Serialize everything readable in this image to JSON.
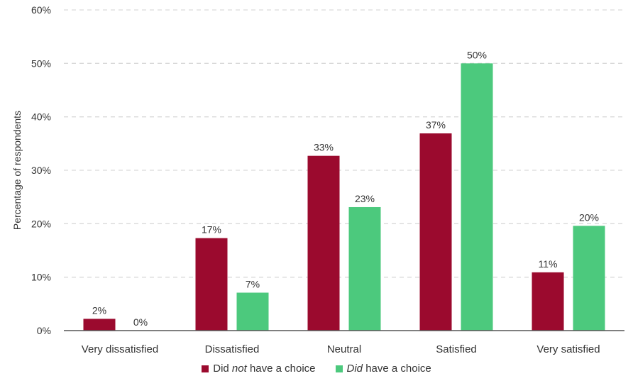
{
  "chart_data": {
    "type": "bar",
    "title": "",
    "xlabel": "",
    "ylabel": "Percentage of respondents",
    "ylim": [
      0,
      60
    ],
    "yticks": [
      "0%",
      "10%",
      "20%",
      "30%",
      "40%",
      "50%",
      "60%"
    ],
    "ytick_values": [
      0,
      10,
      20,
      30,
      40,
      50,
      60
    ],
    "grid": true,
    "grid_style": "dashed",
    "legend_position": "bottom",
    "categories": [
      "Very dissatisfied",
      "Dissatisfied",
      "Neutral",
      "Satisfied",
      "Very satisfied"
    ],
    "series": [
      {
        "name": "Did not have a choice",
        "legend_parts": [
          {
            "text": "Did ",
            "italic": false
          },
          {
            "text": "not",
            "italic": true
          },
          {
            "text": " have a choice",
            "italic": false
          }
        ],
        "color": "#9b0a2e",
        "values": [
          2.2,
          17.3,
          32.7,
          36.9,
          10.9
        ],
        "labels": [
          "2%",
          "17%",
          "33%",
          "37%",
          "11%"
        ]
      },
      {
        "name": "Did have a choice",
        "legend_parts": [
          {
            "text": "Did",
            "italic": true
          },
          {
            "text": " have a choice",
            "italic": false
          }
        ],
        "color": "#4cc97d",
        "values": [
          0,
          7.1,
          23.1,
          50.0,
          19.6
        ],
        "labels": [
          "0%",
          "7%",
          "23%",
          "50%",
          "20%"
        ]
      }
    ]
  },
  "colors": {
    "grid": "#d9d9d9",
    "axis": "#555555",
    "text": "#333333"
  }
}
